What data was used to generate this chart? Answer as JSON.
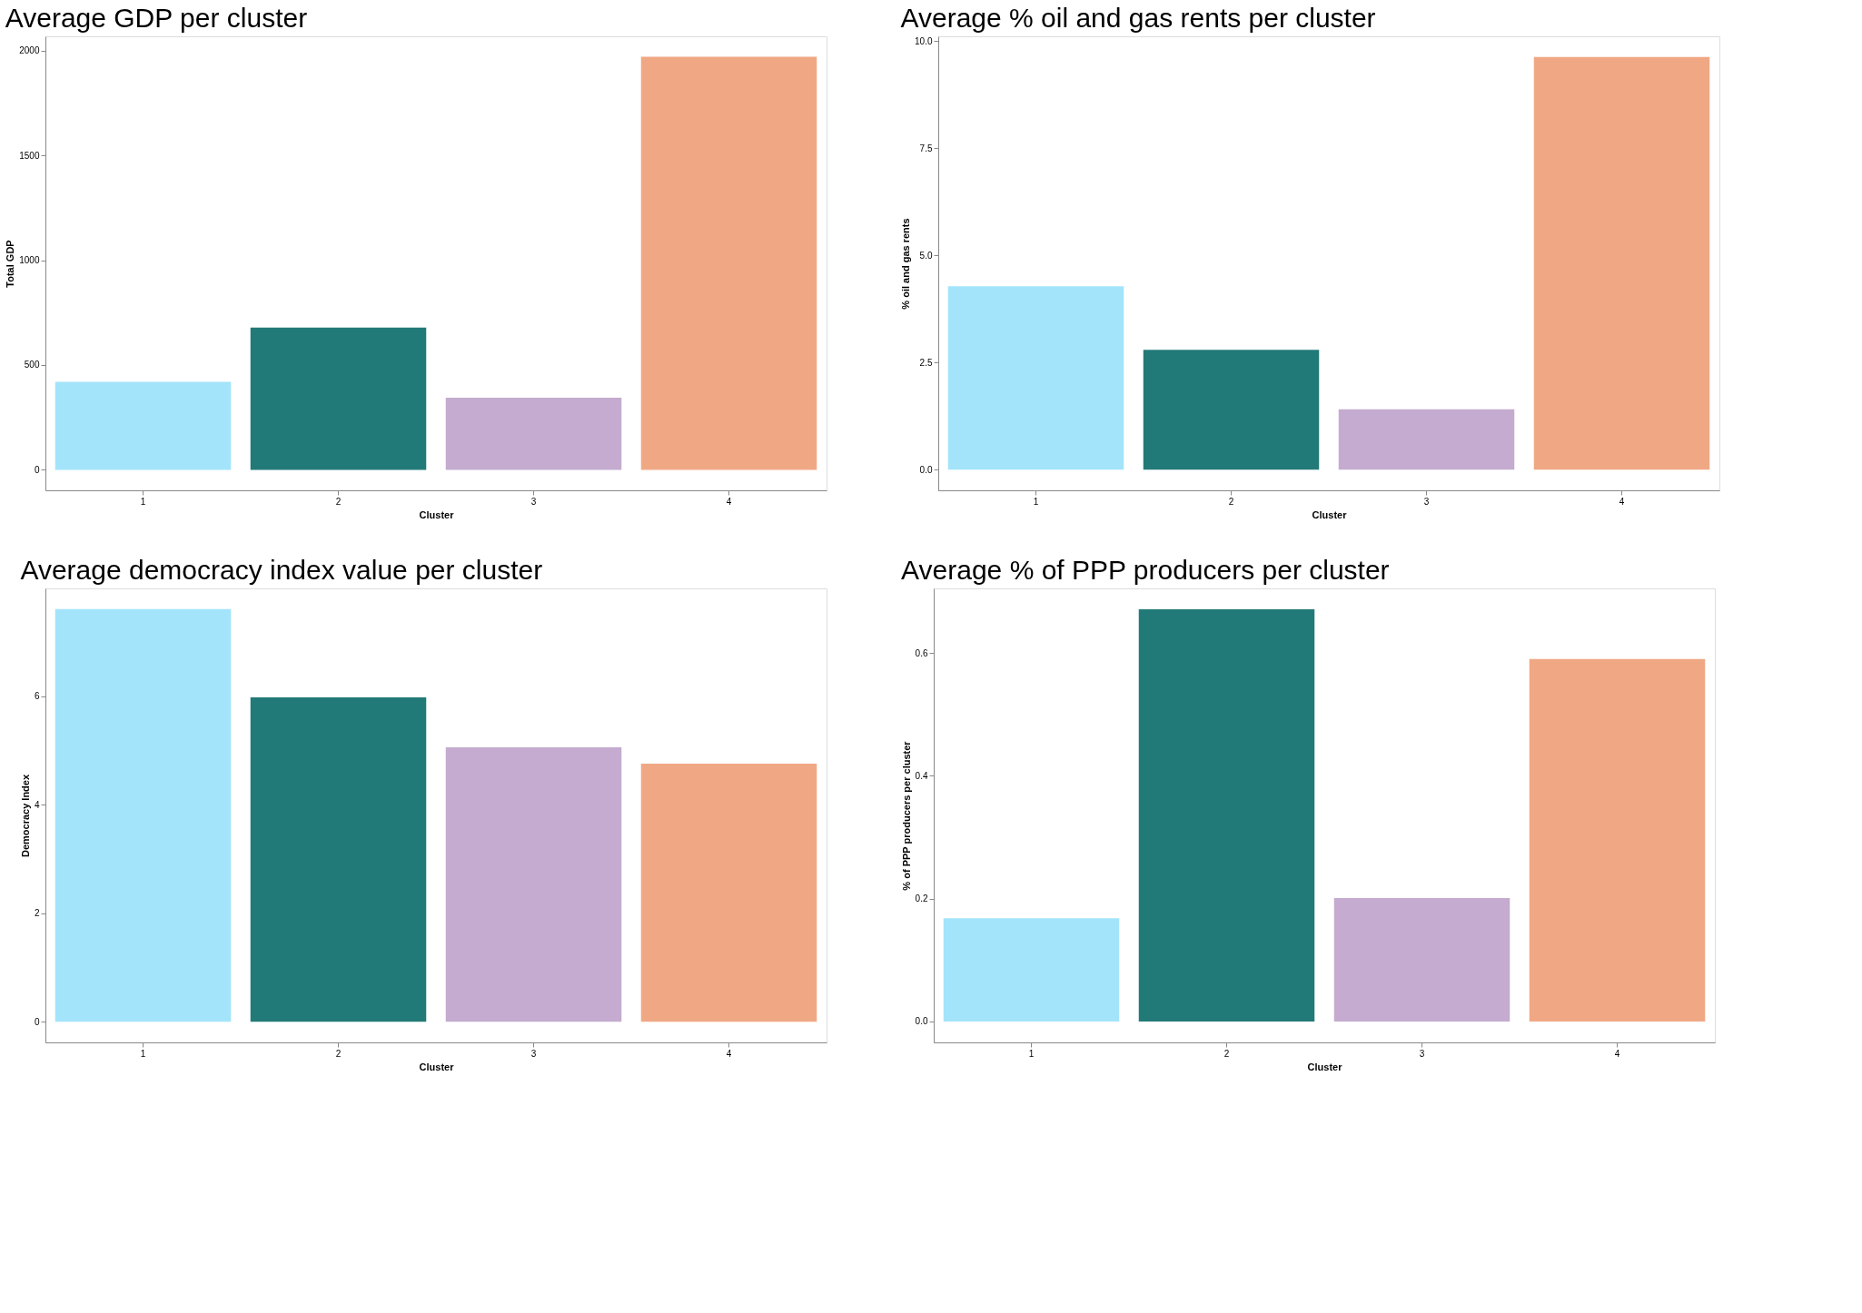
{
  "chart_data": [
    {
      "type": "bar",
      "title": "Average GDP per cluster",
      "xlabel": "Cluster",
      "ylabel": "Total GDP",
      "categories": [
        "1",
        "2",
        "3",
        "4"
      ],
      "values": [
        420,
        678,
        344,
        1970
      ],
      "colors": [
        "#a3e4fb",
        "#227a78",
        "#c4abcf",
        "#f0a884"
      ],
      "ylim": [
        -98,
        2068
      ],
      "yticks": [
        0,
        500,
        1000,
        1500,
        2000
      ],
      "grid": false,
      "legend": false
    },
    {
      "type": "bar",
      "title": "Average % oil and gas rents per cluster",
      "xlabel": "Cluster",
      "ylabel": "% oil and gas rents",
      "categories": [
        "1",
        "2",
        "3",
        "4"
      ],
      "values": [
        4.28,
        2.8,
        1.41,
        9.63
      ],
      "colors": [
        "#a3e4fb",
        "#227a78",
        "#c4abcf",
        "#f0a884"
      ],
      "ylim": [
        -0.48,
        10.11
      ],
      "yticks": [
        {
          "value": 0,
          "label": "0.0"
        },
        2.5,
        {
          "value": 5,
          "label": "5.0"
        },
        7.5,
        {
          "value": 10,
          "label": "10.0"
        }
      ],
      "grid": false,
      "legend": false
    },
    {
      "type": "bar",
      "title": "Average democracy index value per cluster",
      "xlabel": "Cluster",
      "ylabel": "Democracy Index",
      "categories": [
        "1",
        "2",
        "3",
        "4"
      ],
      "values": [
        7.61,
        5.98,
        5.06,
        4.76
      ],
      "colors": [
        "#a3e4fb",
        "#227a78",
        "#c4abcf",
        "#f0a884"
      ],
      "ylim": [
        -0.38,
        7.99
      ],
      "yticks": [
        0,
        2,
        4,
        6
      ],
      "grid": false,
      "legend": false
    },
    {
      "type": "bar",
      "title": "Average % of PPP producers per cluster",
      "xlabel": "Cluster",
      "ylabel": "% of PPP producers per cluster",
      "categories": [
        "1",
        "2",
        "3",
        "4"
      ],
      "values": [
        0.168,
        0.671,
        0.201,
        0.59
      ],
      "colors": [
        "#a3e4fb",
        "#227a78",
        "#c4abcf",
        "#f0a884"
      ],
      "ylim": [
        -0.034,
        0.705
      ],
      "yticks": [
        {
          "value": 0,
          "label": "0.0"
        },
        0.2,
        0.4,
        0.6
      ],
      "grid": false,
      "legend": false
    }
  ]
}
